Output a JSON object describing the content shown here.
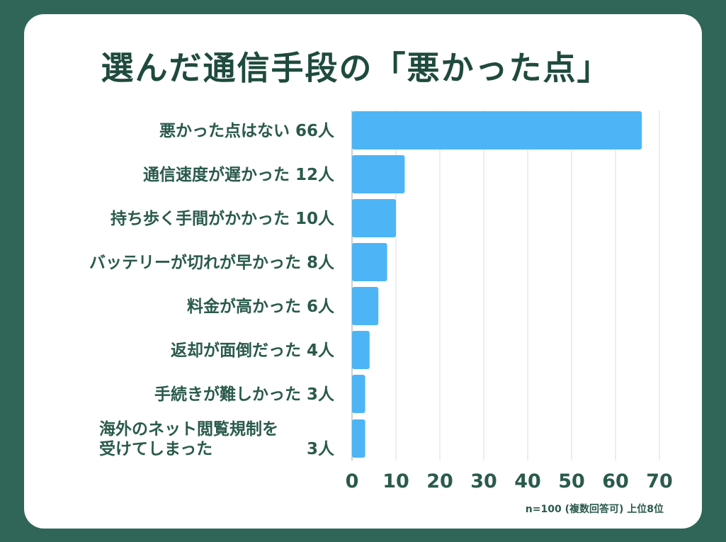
{
  "chart_data": {
    "type": "bar",
    "orientation": "horizontal",
    "title": "選んだ通信手段の「悪かった点」",
    "categories": [
      "悪かった点はない",
      "通信速度が遅かった",
      "持ち歩く手間がかかった",
      "バッテリーが切れが早かった",
      "料金が高かった",
      "返却が面倒だった",
      "手続きが難しかった",
      "海外のネット閲覧規制を受けてしまった"
    ],
    "category_lines": [
      [
        "悪かった点はない"
      ],
      [
        "通信速度が遅かった"
      ],
      [
        "持ち歩く手間がかかった"
      ],
      [
        "バッテリーが切れが早かった"
      ],
      [
        "料金が高かった"
      ],
      [
        "返却が面倒だった"
      ],
      [
        "手続きが難しかった"
      ],
      [
        "海外のネット閲覧規制を",
        "受けてしまった"
      ]
    ],
    "values": [
      66,
      12,
      10,
      8,
      6,
      4,
      3,
      3
    ],
    "value_labels": [
      "66人",
      "12人",
      "10人",
      "8人",
      "6人",
      "4人",
      "3人",
      "3人"
    ],
    "xlim": [
      0,
      70
    ],
    "xticks": [
      0,
      10,
      20,
      30,
      40,
      50,
      60,
      70
    ],
    "grid": true,
    "bar_color": "#4db5f5",
    "note": "n=100 (複数回答可) 上位8位"
  },
  "colors": {
    "background": "#2f6657",
    "card": "#ffffff",
    "text": "#2a5a4c",
    "title": "#1f4a3e",
    "grid": "#d9dedc"
  }
}
